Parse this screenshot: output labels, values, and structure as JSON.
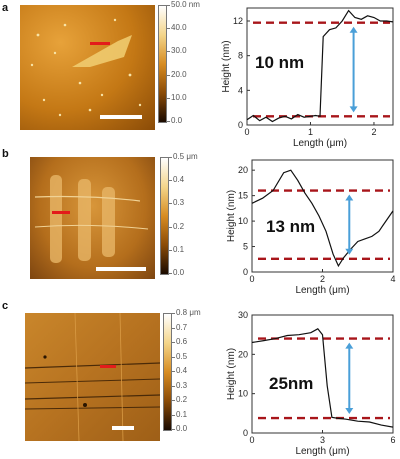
{
  "panels": [
    {
      "letter": "a",
      "colorbar": {
        "ticks": [
          "50.0 nm",
          "40.0",
          "30.0",
          "20.0",
          "10.0",
          "0.0"
        ]
      },
      "chart_data": {
        "type": "line",
        "xlabel": "Length (μm)",
        "ylabel": "Height (nm)",
        "xlim": [
          0,
          2.3
        ],
        "ylim": [
          0,
          13.5
        ],
        "xticks": [
          0,
          1,
          2
        ],
        "yticks": [
          0,
          4,
          8,
          12
        ],
        "x": [
          0,
          0.1,
          0.2,
          0.3,
          0.4,
          0.5,
          0.6,
          0.7,
          0.8,
          0.9,
          1.0,
          1.08,
          1.15,
          1.2,
          1.3,
          1.4,
          1.5,
          1.6,
          1.7,
          1.8,
          1.9,
          2.0,
          2.1,
          2.2,
          2.3
        ],
        "y": [
          0.6,
          1.1,
          0.5,
          0.9,
          0.4,
          0.8,
          1.0,
          0.7,
          1.2,
          0.9,
          1.0,
          1.1,
          1.0,
          10.2,
          11.0,
          11.2,
          12.0,
          13.2,
          12.4,
          12.2,
          12.6,
          12.4,
          12.0,
          12.0,
          11.9
        ],
        "reference_lines": [
          11.8,
          1.0
        ],
        "annotation": "10 nm"
      }
    },
    {
      "letter": "b",
      "colorbar": {
        "ticks": [
          "0.5 μm",
          "0.4",
          "0.3",
          "0.2",
          "0.1",
          "0.0"
        ]
      },
      "chart_data": {
        "type": "line",
        "xlabel": "Length (μm)",
        "ylabel": "Height (nm)",
        "xlim": [
          0,
          4
        ],
        "ylim": [
          0,
          22
        ],
        "xticks": [
          0,
          2,
          4
        ],
        "yticks": [
          0,
          5,
          10,
          15,
          20
        ],
        "x": [
          0,
          0.3,
          0.6,
          0.9,
          1.1,
          1.3,
          1.5,
          1.7,
          1.9,
          2.1,
          2.3,
          2.45,
          2.6,
          2.8,
          3.0,
          3.2,
          3.4,
          3.6,
          3.8,
          4.0
        ],
        "y": [
          13.5,
          14.5,
          16.0,
          19.5,
          20.0,
          18.0,
          15.5,
          13.5,
          11.0,
          8.0,
          3.5,
          1.2,
          2.8,
          4.5,
          6.0,
          6.5,
          7.0,
          8.0,
          10.0,
          12.0
        ],
        "reference_lines": [
          16.0,
          2.6
        ],
        "annotation": "13 nm"
      }
    },
    {
      "letter": "c",
      "colorbar": {
        "ticks": [
          "0.8 μm",
          "0.7",
          "0.6",
          "0.5",
          "0.4",
          "0.3",
          "0.2",
          "0.1",
          "0.0"
        ]
      },
      "chart_data": {
        "type": "line",
        "xlabel": "Length (μm)",
        "ylabel": "Height (nm)",
        "xlim": [
          0,
          6
        ],
        "ylim": [
          0,
          30
        ],
        "xticks": [
          0,
          3,
          6
        ],
        "yticks": [
          0,
          10,
          20,
          30
        ],
        "x": [
          0,
          0.5,
          1.0,
          1.5,
          2.0,
          2.5,
          2.8,
          3.0,
          3.2,
          3.4,
          3.6,
          4.0,
          4.5,
          5.0,
          5.5,
          6.0
        ],
        "y": [
          23.0,
          23.5,
          24.0,
          24.8,
          25.0,
          25.5,
          26.5,
          25.0,
          12.0,
          4.0,
          3.8,
          3.5,
          3.0,
          2.8,
          2.0,
          1.5
        ],
        "reference_lines": [
          24.0,
          3.8
        ],
        "annotation": "25nm"
      }
    }
  ]
}
